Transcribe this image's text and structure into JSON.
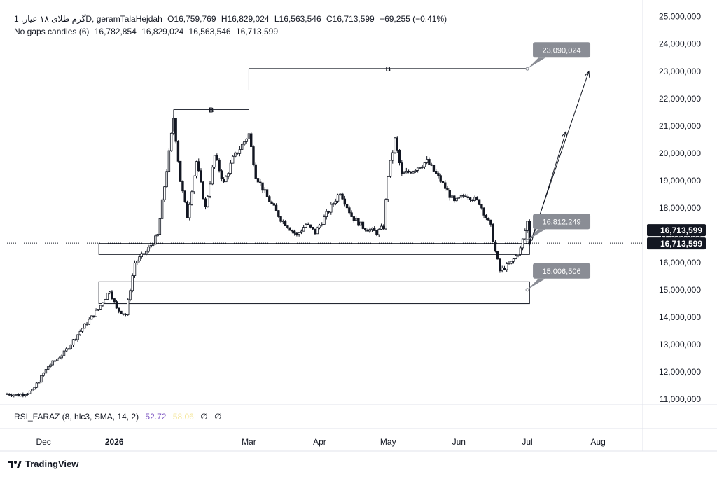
{
  "legend": {
    "symbol": "گرم طلای ۱۸ عیار, 1D, geramTalaHejdah",
    "open": "O16,759,769",
    "high": "H16,829,024",
    "low": "L16,563,546",
    "close": "C16,713,599",
    "change": "−69,255 (−0.41%)",
    "indicator_name": "No gaps candles (6)",
    "indicator_values": [
      "16,782,854",
      "16,829,024",
      "16,563,546",
      "16,713,599"
    ]
  },
  "rsi": {
    "label": "RSI_FARAZ (8, hlc3, SMA, 14, 2)",
    "value": "52.72",
    "value2": "58.06",
    "empty1": "∅",
    "empty2": "∅"
  },
  "brand": {
    "name": "TradingView"
  },
  "colors": {
    "candle": "#131722",
    "price_tag_bg": "#131722",
    "annotation_bg": "#8a8d95",
    "grid": "#f0f3fa",
    "rsi_value": "#7e57c2",
    "rsi_value2": "#f5e79f"
  },
  "chart_data": {
    "type": "candlestick",
    "timeframe": "1D",
    "y_axis": {
      "min": 10800000,
      "max": 25300000,
      "ticks": [
        11000000,
        12000000,
        13000000,
        14000000,
        15000000,
        16000000,
        17000000,
        18000000,
        19000000,
        20000000,
        21000000,
        22000000,
        23000000,
        24000000,
        25000000
      ],
      "tick_labels": [
        "11,000,000",
        "12,000,000",
        "13,000,000",
        "14,000,000",
        "15,000,000",
        "16,000,000",
        "17,000,000",
        "18,000,000",
        "19,000,000",
        "20,000,000",
        "21,000,000",
        "22,000,000",
        "23,000,000",
        "24,000,000",
        "25,000,000"
      ]
    },
    "x_axis": {
      "start_date": "2025-11-15",
      "end_date": "2026-08-20",
      "tick_dates": [
        "2025-12-01",
        "2026-01-01",
        "2026-03-01",
        "2026-04-01",
        "2026-05-01",
        "2026-06-01",
        "2026-07-01",
        "2026-08-01"
      ],
      "tick_labels": [
        "Dec",
        "2026",
        "Mar",
        "Apr",
        "May",
        "Jun",
        "Jul",
        "Aug"
      ]
    },
    "price_path": [
      {
        "date": "2025-11-15",
        "price": 11200000
      },
      {
        "date": "2025-11-20",
        "price": 11150000
      },
      {
        "date": "2025-11-26",
        "price": 11300000
      },
      {
        "date": "2025-12-03",
        "price": 12200000
      },
      {
        "date": "2025-12-10",
        "price": 12700000
      },
      {
        "date": "2025-12-18",
        "price": 13600000
      },
      {
        "date": "2025-12-25",
        "price": 14300000
      },
      {
        "date": "2025-12-30",
        "price": 15000000
      },
      {
        "date": "2026-01-02",
        "price": 14300000
      },
      {
        "date": "2026-01-06",
        "price": 14100000
      },
      {
        "date": "2026-01-10",
        "price": 16000000
      },
      {
        "date": "2026-01-15",
        "price": 16400000
      },
      {
        "date": "2026-01-20",
        "price": 17000000
      },
      {
        "date": "2026-01-25",
        "price": 20000000
      },
      {
        "date": "2026-01-27",
        "price": 21300000
      },
      {
        "date": "2026-01-30",
        "price": 19000000
      },
      {
        "date": "2026-02-02",
        "price": 17700000
      },
      {
        "date": "2026-02-06",
        "price": 19700000
      },
      {
        "date": "2026-02-10",
        "price": 18000000
      },
      {
        "date": "2026-02-14",
        "price": 19900000
      },
      {
        "date": "2026-02-18",
        "price": 18900000
      },
      {
        "date": "2026-02-22",
        "price": 19800000
      },
      {
        "date": "2026-02-26",
        "price": 20300000
      },
      {
        "date": "2026-03-01",
        "price": 20700000
      },
      {
        "date": "2026-03-04",
        "price": 19200000
      },
      {
        "date": "2026-03-09",
        "price": 18400000
      },
      {
        "date": "2026-03-15",
        "price": 17600000
      },
      {
        "date": "2026-03-22",
        "price": 17000000
      },
      {
        "date": "2026-03-26",
        "price": 17400000
      },
      {
        "date": "2026-03-30",
        "price": 17100000
      },
      {
        "date": "2026-04-05",
        "price": 17900000
      },
      {
        "date": "2026-04-10",
        "price": 18600000
      },
      {
        "date": "2026-04-15",
        "price": 17700000
      },
      {
        "date": "2026-04-20",
        "price": 17300000
      },
      {
        "date": "2026-04-26",
        "price": 17100000
      },
      {
        "date": "2026-04-29",
        "price": 17300000
      },
      {
        "date": "2026-05-01",
        "price": 19200000
      },
      {
        "date": "2026-05-04",
        "price": 20500000
      },
      {
        "date": "2026-05-07",
        "price": 19200000
      },
      {
        "date": "2026-05-12",
        "price": 19400000
      },
      {
        "date": "2026-05-18",
        "price": 19700000
      },
      {
        "date": "2026-05-24",
        "price": 19000000
      },
      {
        "date": "2026-05-30",
        "price": 18200000
      },
      {
        "date": "2026-06-04",
        "price": 18500000
      },
      {
        "date": "2026-06-10",
        "price": 18200000
      },
      {
        "date": "2026-06-15",
        "price": 17300000
      },
      {
        "date": "2026-06-17",
        "price": 16400000
      },
      {
        "date": "2026-06-19",
        "price": 15700000
      },
      {
        "date": "2026-06-24",
        "price": 16000000
      },
      {
        "date": "2026-06-28",
        "price": 16500000
      },
      {
        "date": "2026-07-01",
        "price": 17500000
      },
      {
        "date": "2026-07-02",
        "price": 16713599
      }
    ],
    "last_close": 16713599,
    "price_tag_labels": [
      "16,713,599",
      "16,713,599"
    ],
    "zones": [
      {
        "from_date": "2026-01-01",
        "to_date": "2026-07-02",
        "low": 16300000,
        "high": 16700000
      },
      {
        "from_date": "2026-01-01",
        "to_date": "2026-07-02",
        "low": 14500000,
        "high": 15300000
      }
    ],
    "measures": [
      {
        "label": "B",
        "from_date": "2026-01-27",
        "to_date": "2026-03-01",
        "level": 21600000
      },
      {
        "label": "B",
        "from_date": "2026-03-01",
        "to_date": "2026-07-01",
        "level": 23100000
      }
    ],
    "projections": [
      {
        "from_date": "2026-07-03",
        "from_price": 16900000,
        "to_date": "2026-07-28",
        "to_price": 23000000
      },
      {
        "from_date": "2026-07-03",
        "from_price": 16800000,
        "to_date": "2026-07-18",
        "to_price": 20800000
      }
    ],
    "annotations": [
      {
        "text": "23,090,024",
        "date": "2026-07-01",
        "price": 23090024
      },
      {
        "text": "16,812,249",
        "date": "2026-07-01",
        "price": 16812249
      },
      {
        "text": "15,006,506",
        "date": "2026-07-01",
        "price": 15006506
      }
    ],
    "grid": false
  }
}
